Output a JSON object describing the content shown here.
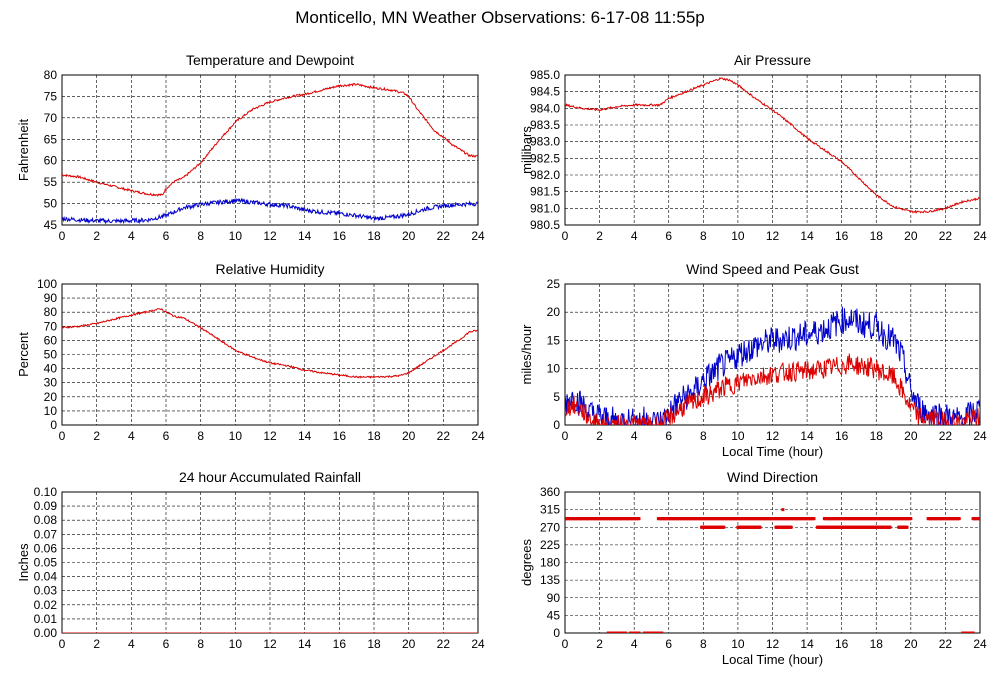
{
  "title": "Monticello, MN Weather Observations: 6-17-08 11:55p",
  "colors": {
    "red": "#dd0000",
    "blue": "#0000cc",
    "grid": "#000000"
  },
  "chart_data": [
    {
      "id": "temp",
      "type": "line",
      "title": "Temperature and Dewpoint",
      "xlabel": "",
      "ylabel": "Fahrenheit",
      "xlim": [
        0,
        24
      ],
      "ylim": [
        45,
        80
      ],
      "xticks": [
        0,
        2,
        4,
        6,
        8,
        10,
        12,
        14,
        16,
        18,
        20,
        22,
        24
      ],
      "yticks": [
        45,
        50,
        55,
        60,
        65,
        70,
        75,
        80
      ],
      "grid": true,
      "series": [
        {
          "color": "red",
          "noise": 0.25,
          "x": [
            0,
            1,
            2,
            3,
            4,
            5,
            5.8,
            6,
            6.5,
            7,
            8,
            9,
            10,
            11,
            12,
            13,
            14,
            15,
            16,
            17,
            18,
            19,
            19.7,
            20,
            20.5,
            21,
            21.5,
            22,
            22.5,
            23,
            23.5,
            24
          ],
          "y": [
            56.7,
            56.2,
            55,
            54,
            53,
            52.2,
            52,
            53.5,
            55.2,
            56,
            59.5,
            64.5,
            69,
            72,
            73.7,
            74.8,
            75.5,
            76.5,
            77.5,
            77.8,
            77,
            76.5,
            75.8,
            75,
            72,
            69.5,
            67,
            65.5,
            63.8,
            62.5,
            61.2,
            61
          ]
        },
        {
          "color": "blue",
          "noise": 0.5,
          "x": [
            0,
            1,
            2,
            3,
            4,
            5,
            6,
            7,
            8,
            9,
            10,
            11,
            12,
            13,
            14,
            15,
            16,
            17,
            18,
            19,
            20,
            21,
            22,
            23,
            24
          ],
          "y": [
            46.5,
            46.2,
            46,
            45.9,
            46,
            46.2,
            47.2,
            49,
            49.8,
            50.3,
            50.7,
            50.3,
            49.8,
            49.5,
            48.5,
            48,
            47.7,
            47.2,
            46.5,
            46.8,
            47.5,
            48.8,
            49.5,
            49.8,
            50
          ]
        }
      ]
    },
    {
      "id": "pressure",
      "type": "line",
      "title": "Air Pressure",
      "xlabel": "",
      "ylabel": "millibars",
      "xlim": [
        0,
        24
      ],
      "ylim": [
        980.5,
        985.0
      ],
      "xticks": [
        0,
        2,
        4,
        6,
        8,
        10,
        12,
        14,
        16,
        18,
        20,
        22,
        24
      ],
      "yticks": [
        "980.5",
        "981.0",
        "981.5",
        "982.0",
        "982.5",
        "983.0",
        "983.5",
        "984.0",
        "984.5",
        "985.0"
      ],
      "grid": true,
      "series": [
        {
          "color": "red",
          "noise": 0.03,
          "x": [
            0,
            1,
            2,
            3,
            4,
            5,
            5.5,
            6,
            7,
            8,
            8.5,
            9,
            9.5,
            10,
            10.5,
            11,
            12,
            13,
            14,
            15,
            16,
            17,
            18,
            19,
            20,
            21,
            22,
            23,
            24
          ],
          "y": [
            984.1,
            984.0,
            983.95,
            984.05,
            984.1,
            984.1,
            984.1,
            984.3,
            984.5,
            984.7,
            984.8,
            984.9,
            984.85,
            984.7,
            984.5,
            984.3,
            983.95,
            983.55,
            983.1,
            982.75,
            982.4,
            981.9,
            981.4,
            981.05,
            980.9,
            980.9,
            981.0,
            981.2,
            981.3
          ]
        }
      ]
    },
    {
      "id": "humidity",
      "type": "line",
      "title": "Relative Humidity",
      "xlabel": "",
      "ylabel": "Percent",
      "xlim": [
        0,
        24
      ],
      "ylim": [
        0,
        100
      ],
      "xticks": [
        0,
        2,
        4,
        6,
        8,
        10,
        12,
        14,
        16,
        18,
        20,
        22,
        24
      ],
      "yticks": [
        0,
        10,
        20,
        30,
        40,
        50,
        60,
        70,
        80,
        90,
        100
      ],
      "grid": true,
      "series": [
        {
          "color": "red",
          "noise": 0.6,
          "x": [
            0,
            1,
            2,
            3,
            4,
            5,
            5.7,
            6,
            6.5,
            7,
            8,
            9,
            10,
            11,
            12,
            13,
            14,
            15,
            16,
            17,
            18,
            19,
            19.5,
            20,
            21,
            22,
            23,
            23.5,
            24
          ],
          "y": [
            69,
            70,
            72,
            75,
            78,
            80.5,
            82.5,
            80,
            77,
            76,
            69,
            61,
            53,
            48,
            44,
            42,
            39,
            37,
            35.5,
            34,
            34,
            34.5,
            35,
            37,
            45,
            53,
            61,
            66,
            67
          ]
        }
      ]
    },
    {
      "id": "wind",
      "type": "line",
      "title": "Wind Speed and Peak Gust",
      "xlabel": "Local Time (hour)",
      "ylabel": "miles/hour",
      "xlim": [
        0,
        24
      ],
      "ylim": [
        0,
        25
      ],
      "xticks": [
        0,
        2,
        4,
        6,
        8,
        10,
        12,
        14,
        16,
        18,
        20,
        22,
        24
      ],
      "yticks": [
        0,
        5,
        10,
        15,
        20,
        25
      ],
      "grid": true,
      "series": [
        {
          "color": "blue",
          "noise": 2.5,
          "x": [
            0,
            0.5,
            1,
            1.5,
            2,
            2.5,
            3,
            3.5,
            4,
            4.5,
            5,
            5.5,
            6,
            6.5,
            7,
            7.5,
            8,
            8.5,
            9,
            9.5,
            10,
            11,
            12,
            13,
            14,
            15,
            16,
            16.5,
            17,
            18,
            18.5,
            19,
            19.5,
            20,
            20.5,
            21,
            21.5,
            22,
            22.5,
            23,
            23.5,
            24
          ],
          "y": [
            4,
            5,
            3.5,
            2,
            1.5,
            1,
            0.5,
            1,
            0.5,
            1,
            0.5,
            0.5,
            2,
            4,
            5,
            6,
            8,
            9,
            10.5,
            11,
            12.5,
            14,
            15,
            15.5,
            16,
            17,
            18.5,
            19,
            18,
            17.5,
            16,
            15,
            12,
            6,
            3,
            2,
            2,
            1.5,
            1,
            1,
            2,
            3
          ]
        },
        {
          "color": "red",
          "noise": 1.8,
          "x": [
            0,
            0.5,
            1,
            1.5,
            2,
            2.5,
            3,
            3.5,
            4,
            4.5,
            5,
            5.5,
            6,
            6.5,
            7,
            7.5,
            8,
            8.5,
            9,
            9.5,
            10,
            11,
            12,
            13,
            14,
            15,
            16,
            16.5,
            17,
            18,
            18.5,
            19,
            19.5,
            20,
            20.5,
            21,
            21.5,
            22,
            22.5,
            23,
            23.5,
            24
          ],
          "y": [
            3,
            3.5,
            2.5,
            1,
            0,
            0,
            0,
            0,
            0,
            0,
            0,
            0,
            1,
            2.5,
            3.5,
            4,
            5,
            5.5,
            6.5,
            7,
            7.5,
            8.5,
            9,
            9.5,
            9.5,
            10,
            10.5,
            11,
            10.5,
            10,
            9,
            8.5,
            6,
            3,
            1.5,
            1,
            1,
            0.5,
            0.5,
            0.5,
            1,
            1.5
          ]
        }
      ]
    },
    {
      "id": "rain",
      "type": "line",
      "title": "24 hour Accumulated Rainfall",
      "xlabel": "",
      "ylabel": "Inches",
      "xlim": [
        0,
        24
      ],
      "ylim": [
        0,
        0.1
      ],
      "xticks": [
        0,
        2,
        4,
        6,
        8,
        10,
        12,
        14,
        16,
        18,
        20,
        22,
        24
      ],
      "yticks": [
        "0.00",
        "0.01",
        "0.02",
        "0.03",
        "0.04",
        "0.05",
        "0.06",
        "0.07",
        "0.08",
        "0.09",
        "0.10"
      ],
      "grid": true,
      "series": [
        {
          "color": "red",
          "noise": 0,
          "x": [
            0,
            24
          ],
          "y": [
            0,
            0
          ]
        }
      ]
    },
    {
      "id": "direction",
      "type": "scatter",
      "title": "Wind Direction",
      "xlabel": "Local Time (hour)",
      "ylabel": "degrees",
      "xlim": [
        0,
        24
      ],
      "ylim": [
        0,
        360
      ],
      "xticks": [
        0,
        2,
        4,
        6,
        8,
        10,
        12,
        14,
        16,
        18,
        20,
        22,
        24
      ],
      "yticks": [
        0,
        45,
        90,
        135,
        180,
        225,
        270,
        315,
        360
      ],
      "grid": true,
      "series": [
        {
          "color": "red",
          "runs": [
            {
              "y": 292,
              "x0": 0,
              "x1": 4.3
            },
            {
              "y": 292,
              "x0": 5.4,
              "x1": 14.4
            },
            {
              "y": 292,
              "x0": 15.0,
              "x1": 20.0
            },
            {
              "y": 292,
              "x0": 21.0,
              "x1": 22.8
            },
            {
              "y": 292,
              "x0": 23.6,
              "x1": 24
            },
            {
              "y": 270,
              "x0": 7.9,
              "x1": 9.2
            },
            {
              "y": 270,
              "x0": 10.0,
              "x1": 11.3
            },
            {
              "y": 270,
              "x0": 12.2,
              "x1": 13.1
            },
            {
              "y": 270,
              "x0": 14.6,
              "x1": 18.8
            },
            {
              "y": 270,
              "x0": 19.3,
              "x1": 19.8
            },
            {
              "y": 0,
              "x0": 2.5,
              "x1": 3.5
            },
            {
              "y": 0,
              "x0": 3.8,
              "x1": 4.3
            },
            {
              "y": 0,
              "x0": 4.6,
              "x1": 5.6
            },
            {
              "y": 0,
              "x0": 23.0,
              "x1": 23.6
            }
          ],
          "points": [
            {
              "x": 12.6,
              "y": 315
            }
          ]
        }
      ]
    }
  ]
}
